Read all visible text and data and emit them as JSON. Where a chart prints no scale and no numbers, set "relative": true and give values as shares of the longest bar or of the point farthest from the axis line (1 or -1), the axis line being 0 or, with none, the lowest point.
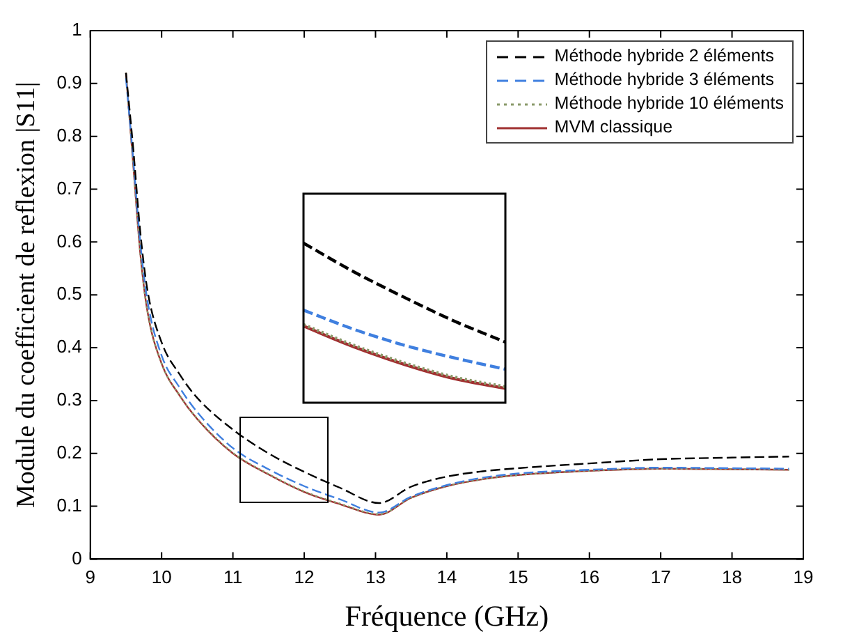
{
  "chart_data": [
    {
      "type": "line",
      "xlabel": "Fréquence (GHz)",
      "ylabel": "Module du coefficient de reflexion |S11|",
      "x": [
        9.5,
        9.6,
        9.7,
        9.8,
        10,
        10.25,
        10.5,
        11,
        11.5,
        12,
        12.5,
        13.05,
        13.5,
        14,
        14.5,
        15,
        16,
        17,
        18,
        18.8
      ],
      "series": [
        {
          "name": "Méthode hybride 2 éléments",
          "color": "#000000",
          "line_style": "dashed",
          "values": [
            0.92,
            0.78,
            0.62,
            0.51,
            0.41,
            0.35,
            0.305,
            0.245,
            0.2,
            0.165,
            0.135,
            0.106,
            0.137,
            0.156,
            0.166,
            0.172,
            0.181,
            0.189,
            0.192,
            0.194
          ]
        },
        {
          "name": "Méthode hybride 3 éléments",
          "color": "#3f7fdf",
          "line_style": "dashed",
          "values": [
            0.91,
            0.76,
            0.6,
            0.49,
            0.385,
            0.325,
            0.278,
            0.21,
            0.17,
            0.138,
            0.113,
            0.088,
            0.118,
            0.14,
            0.154,
            0.162,
            0.169,
            0.173,
            0.172,
            0.171
          ]
        },
        {
          "name": "Méthode hybride 10 éléments",
          "color": "#8a9a6a",
          "line_style": "dotted",
          "values": [
            0.92,
            0.75,
            0.58,
            0.47,
            0.37,
            0.31,
            0.266,
            0.201,
            0.161,
            0.128,
            0.105,
            0.085,
            0.116,
            0.138,
            0.151,
            0.159,
            0.167,
            0.171,
            0.17,
            0.169
          ]
        },
        {
          "name": "MVM classique",
          "color": "#a03030",
          "line_style": "solid",
          "values": [
            0.92,
            0.75,
            0.58,
            0.47,
            0.37,
            0.31,
            0.265,
            0.2,
            0.16,
            0.127,
            0.104,
            0.084,
            0.116,
            0.138,
            0.151,
            0.159,
            0.167,
            0.171,
            0.17,
            0.169
          ]
        }
      ],
      "xlim": [
        9,
        19
      ],
      "xticks": [
        9,
        10,
        11,
        12,
        13,
        14,
        15,
        16,
        17,
        18,
        19
      ],
      "ylim": [
        0,
        1
      ],
      "yticks": [
        0,
        0.1,
        0.2,
        0.3,
        0.4,
        0.5,
        0.6,
        0.7,
        0.8,
        0.9,
        1
      ],
      "grid": false,
      "legend": "top right",
      "marker": "none"
    },
    {
      "type": "line",
      "relative": true,
      "categories": [
        null,
        null,
        null,
        null,
        null
      ],
      "series": [
        {
          "color": "#000000",
          "line_style": "dashed",
          "values": [
            1,
            0.82,
            0.66,
            0.51,
            0.38
          ]
        },
        {
          "color": "#3f7fdf",
          "line_style": "dashed",
          "values": [
            0.58,
            0.46,
            0.36,
            0.28,
            0.21
          ]
        },
        {
          "color": "#8a9a6a",
          "line_style": "dotted",
          "values": [
            0.49,
            0.36,
            0.25,
            0.16,
            0.1
          ]
        },
        {
          "color": "#a03030",
          "line_style": "solid",
          "values": [
            0.48,
            0.35,
            0.24,
            0.15,
            0.09
          ]
        }
      ],
      "grid": false,
      "marker": "none"
    }
  ]
}
